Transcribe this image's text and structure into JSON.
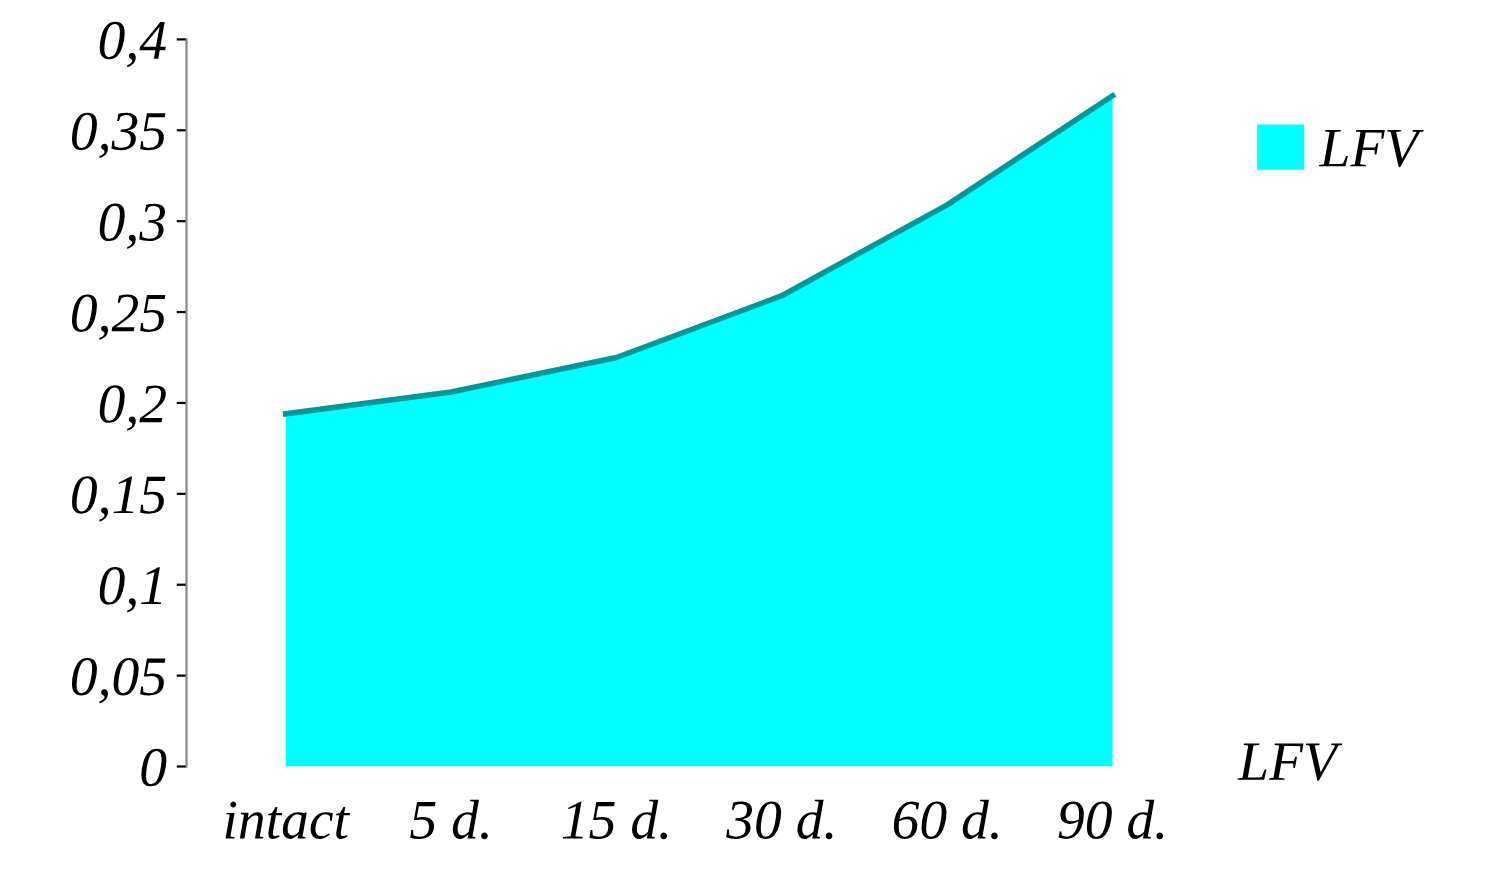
{
  "chart_data": {
    "type": "area",
    "categories": [
      "intact",
      "5 d.",
      "15 d.",
      "30 d.",
      "60 d.",
      "90 d."
    ],
    "series": [
      {
        "name": "LFV",
        "color": "#00ffff",
        "values": [
          0.194,
          0.206,
          0.225,
          0.259,
          0.309,
          0.369
        ]
      }
    ],
    "ylim": [
      0,
      0.4
    ],
    "yticks": [
      0,
      {
        "value": 0.05,
        "label": "0,05"
      },
      {
        "value": 0.1,
        "label": "0,1"
      },
      {
        "value": 0.15,
        "label": "0,15"
      },
      {
        "value": 0.2,
        "label": "0,2"
      },
      {
        "value": 0.25,
        "label": "0,25"
      },
      {
        "value": 0.3,
        "label": "0,3"
      },
      {
        "value": 0.35,
        "label": "0,35"
      },
      {
        "value": 0.4,
        "label": "0,4"
      }
    ],
    "annotations": [
      "LFV"
    ],
    "legend": "right",
    "grid": false
  }
}
